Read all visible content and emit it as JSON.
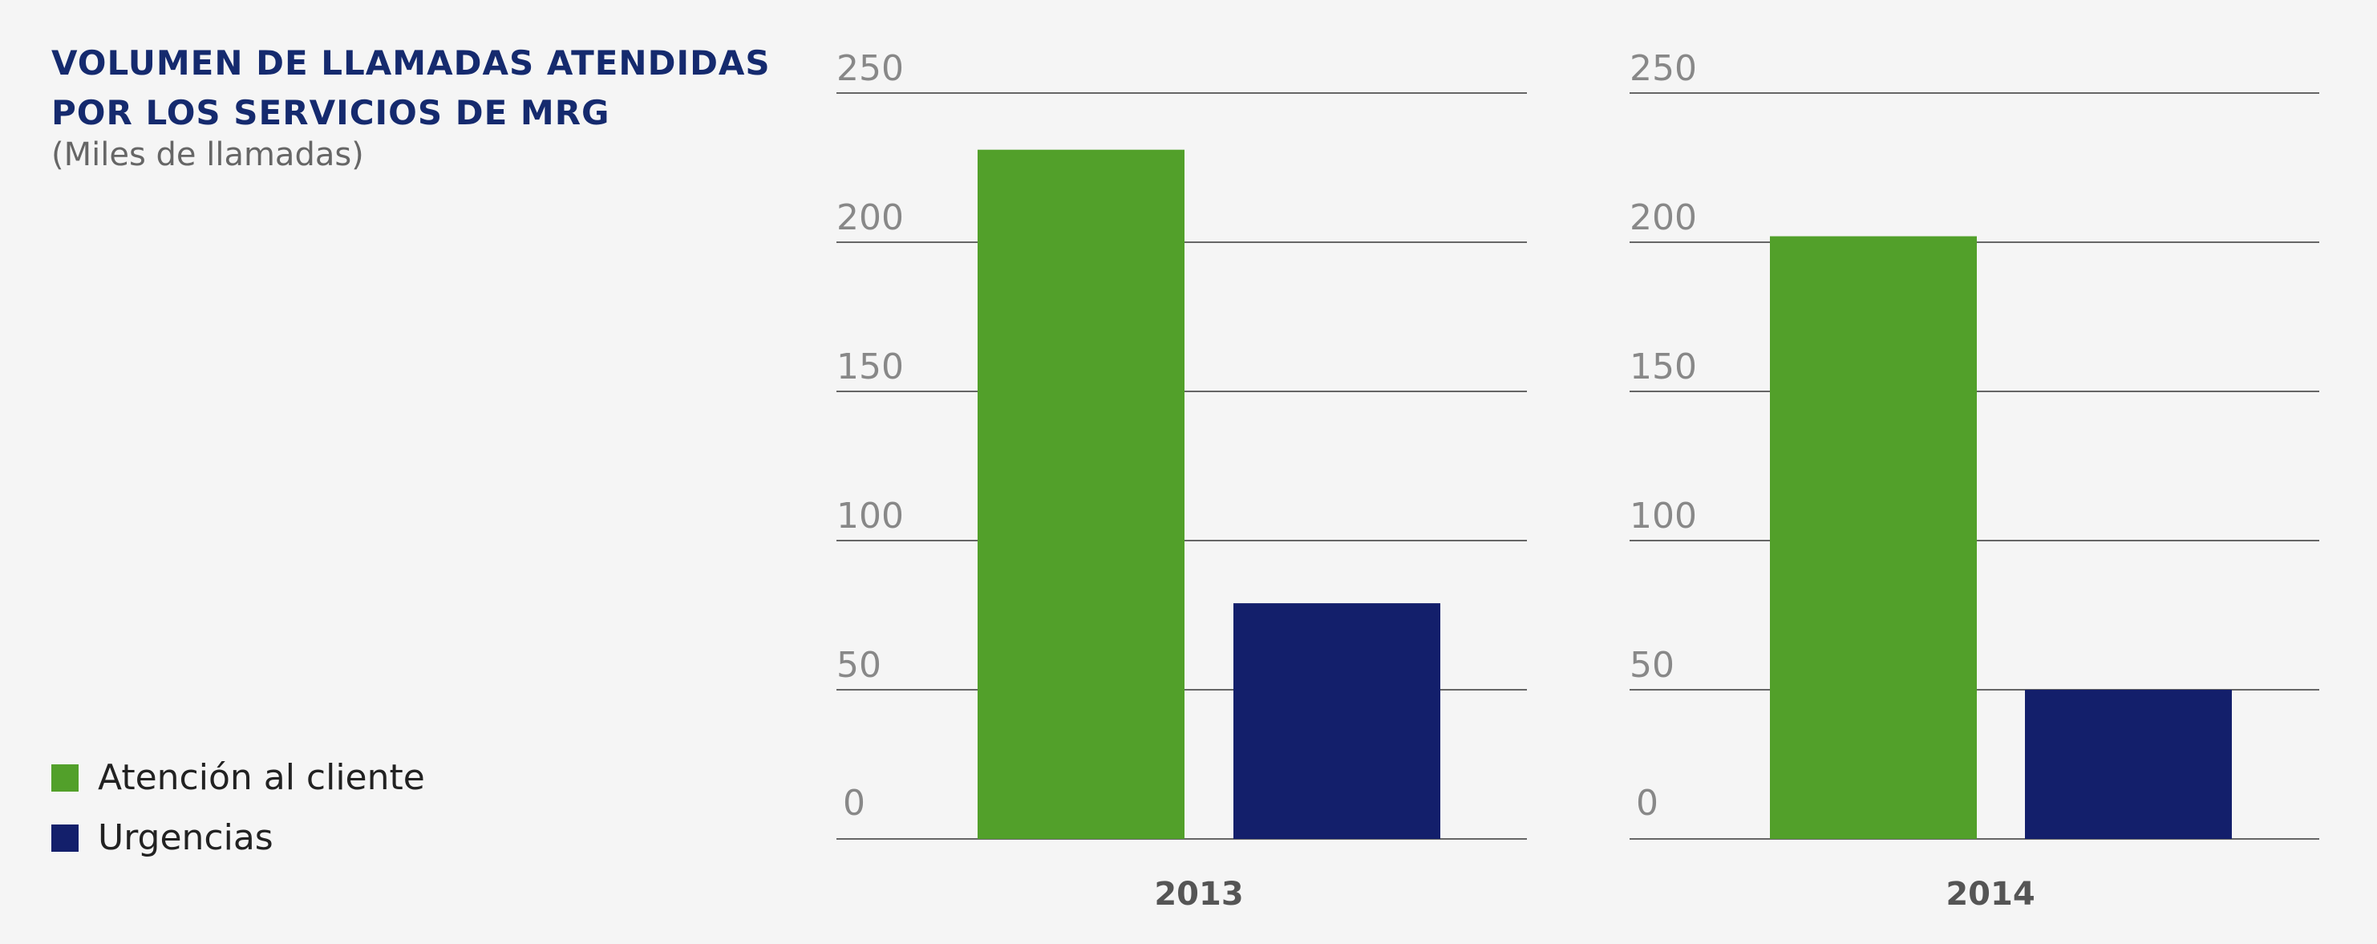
{
  "title": {
    "line1": "VOLUMEN DE LLAMADAS ATENDIDAS",
    "line2": "POR LOS SERVICIOS DE MRG",
    "subtitle": "(Miles de llamadas)"
  },
  "legend": [
    {
      "label": "Atención al cliente",
      "color": "#52a02a"
    },
    {
      "label": "Urgencias",
      "color": "#131f6b"
    }
  ],
  "chart_data": [
    {
      "type": "bar",
      "categories": [
        "2013"
      ],
      "series": [
        {
          "name": "Atención al cliente",
          "values": [
            231
          ],
          "color": "#52a02a"
        },
        {
          "name": "Urgencias",
          "values": [
            79
          ],
          "color": "#131f6b"
        }
      ],
      "ylim": [
        0,
        250
      ],
      "yticks": [
        "0",
        "50",
        "100",
        "150",
        "200",
        "250"
      ],
      "grid": true
    },
    {
      "type": "bar",
      "categories": [
        "2014"
      ],
      "series": [
        {
          "name": "Atención al cliente",
          "values": [
            202
          ],
          "color": "#52a02a"
        },
        {
          "name": "Urgencias",
          "values": [
            50
          ],
          "color": "#131f6b"
        }
      ],
      "ylim": [
        0,
        250
      ],
      "yticks": [
        "0",
        "50",
        "100",
        "150",
        "200",
        "250"
      ],
      "grid": true
    }
  ]
}
